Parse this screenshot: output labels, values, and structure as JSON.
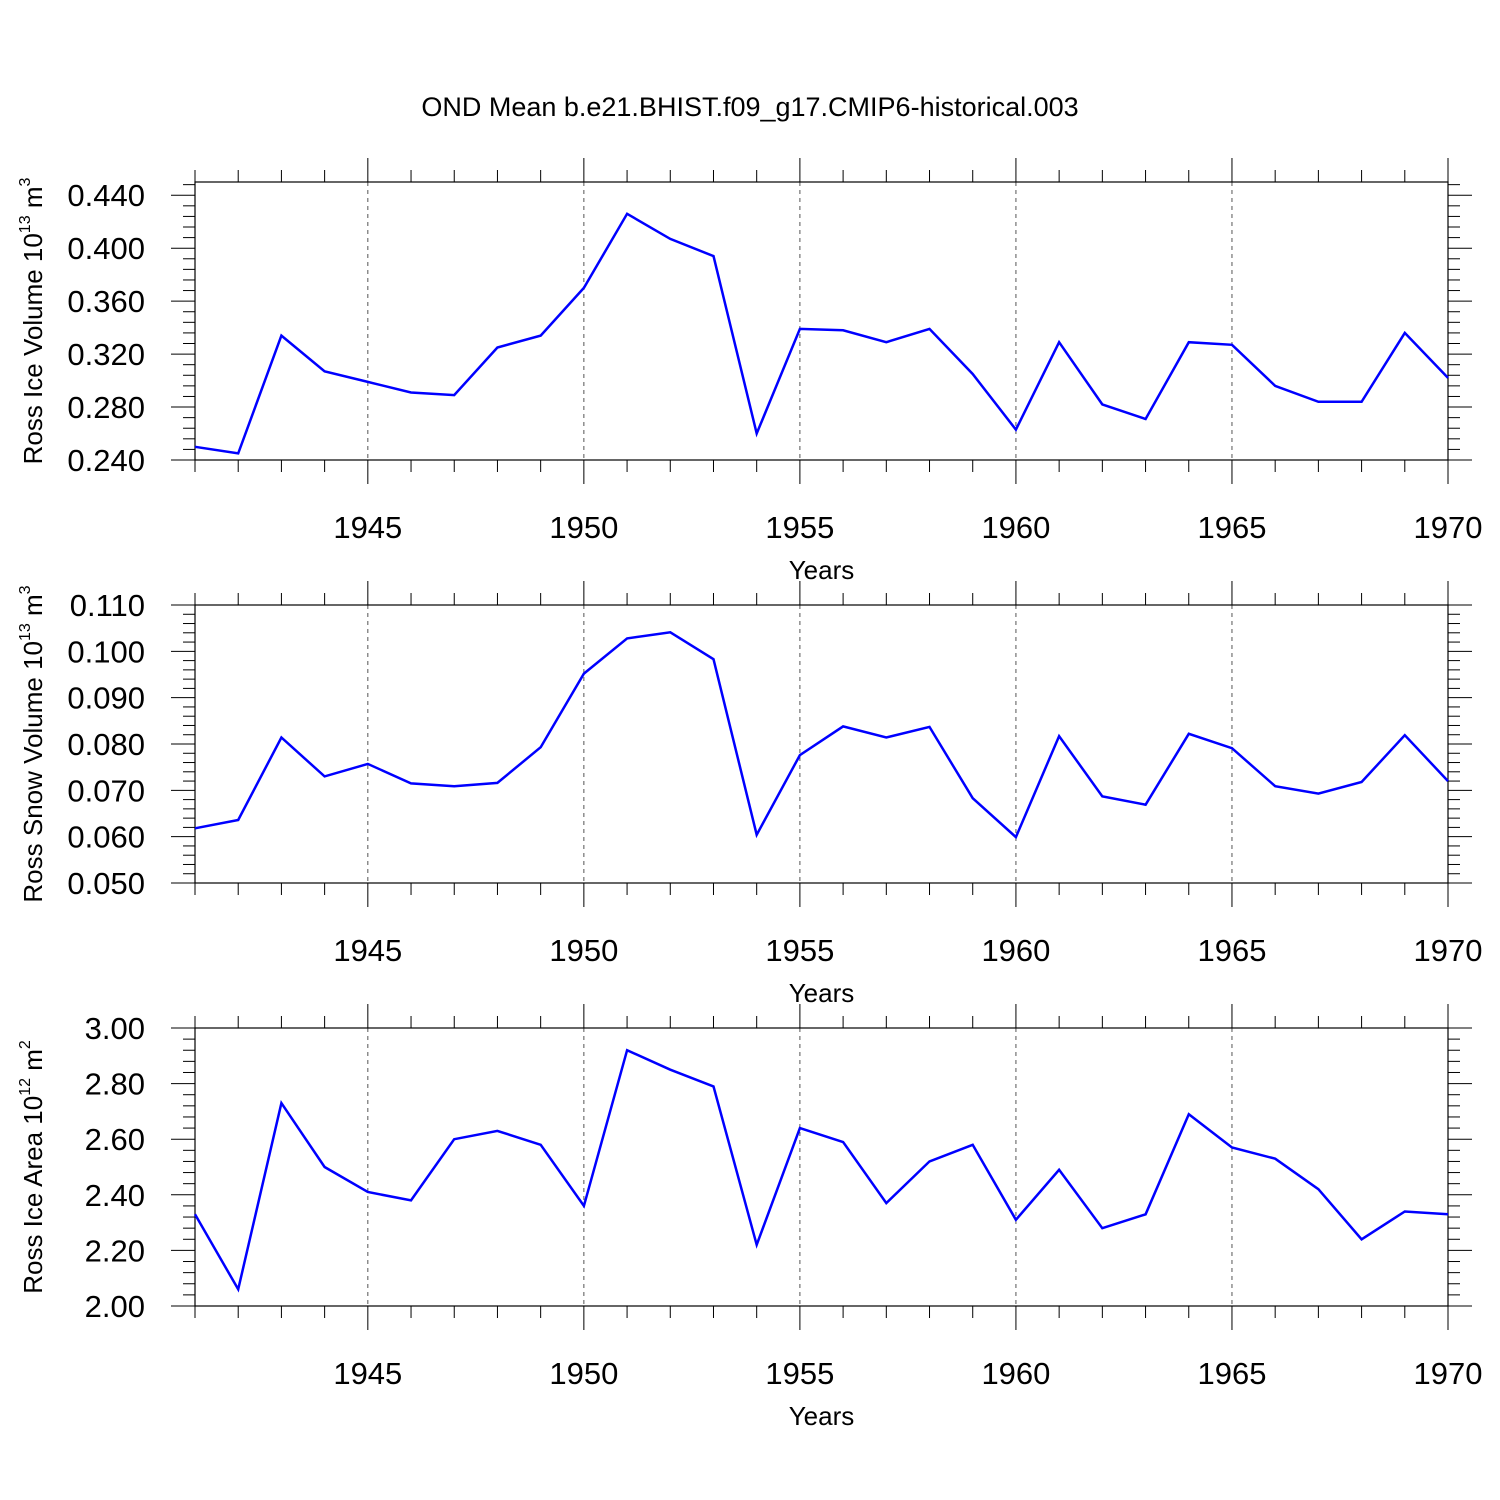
{
  "title": "OND Mean b.e21.BHIST.f09_g17.CMIP6-historical.003",
  "colors": {
    "line": "#0000ff",
    "axis": "#000000",
    "grid": "#555555"
  },
  "chart_data": [
    {
      "type": "line",
      "ylabel": {
        "text": "Ross Ice Volume 10",
        "exp": "13",
        "unit": " m",
        "unit_exp": "3"
      },
      "xlabel": "Years",
      "xlim": [
        1941,
        1970
      ],
      "ylim": [
        0.24,
        0.45
      ],
      "yticks": [
        0.24,
        0.28,
        0.32,
        0.36,
        0.4,
        0.44
      ],
      "ytick_labels": [
        "0.240",
        "0.280",
        "0.320",
        "0.360",
        "0.400",
        "0.440"
      ],
      "xticks": [
        1945,
        1950,
        1955,
        1960,
        1965,
        1970
      ],
      "xtick_labels": [
        "1945",
        "1950",
        "1955",
        "1960",
        "1965",
        "1970"
      ],
      "grid": "vertical dashed at major x ticks",
      "x": [
        1941,
        1942,
        1943,
        1944,
        1945,
        1946,
        1947,
        1948,
        1949,
        1950,
        1951,
        1952,
        1953,
        1954,
        1955,
        1956,
        1957,
        1958,
        1959,
        1960,
        1961,
        1962,
        1963,
        1964,
        1965,
        1966,
        1967,
        1968,
        1969,
        1970
      ],
      "values": [
        0.25,
        0.245,
        0.334,
        0.307,
        0.299,
        0.291,
        0.289,
        0.325,
        0.334,
        0.37,
        0.426,
        0.407,
        0.394,
        0.26,
        0.339,
        0.338,
        0.329,
        0.339,
        0.305,
        0.263,
        0.329,
        0.282,
        0.271,
        0.329,
        0.327,
        0.296,
        0.284,
        0.284,
        0.336,
        0.302
      ]
    },
    {
      "type": "line",
      "ylabel": {
        "text": "Ross Snow Volume 10",
        "exp": "13",
        "unit": " m",
        "unit_exp": "3"
      },
      "xlabel": "Years",
      "xlim": [
        1941,
        1970
      ],
      "ylim": [
        0.05,
        0.11
      ],
      "yticks": [
        0.05,
        0.06,
        0.07,
        0.08,
        0.09,
        0.1,
        0.11
      ],
      "ytick_labels": [
        "0.050",
        "0.060",
        "0.070",
        "0.080",
        "0.090",
        "0.100",
        "0.110"
      ],
      "xticks": [
        1945,
        1950,
        1955,
        1960,
        1965,
        1970
      ],
      "xtick_labels": [
        "1945",
        "1950",
        "1955",
        "1960",
        "1965",
        "1970"
      ],
      "grid": "vertical dashed at major x ticks",
      "x": [
        1941,
        1942,
        1943,
        1944,
        1945,
        1946,
        1947,
        1948,
        1949,
        1950,
        1951,
        1952,
        1953,
        1954,
        1955,
        1956,
        1957,
        1958,
        1959,
        1960,
        1961,
        1962,
        1963,
        1964,
        1965,
        1966,
        1967,
        1968,
        1969,
        1970
      ],
      "values": [
        0.0618,
        0.0636,
        0.0814,
        0.073,
        0.0757,
        0.0715,
        0.0709,
        0.0716,
        0.0793,
        0.0952,
        0.1028,
        0.1041,
        0.0983,
        0.0604,
        0.0776,
        0.0838,
        0.0814,
        0.0837,
        0.0683,
        0.0599,
        0.0817,
        0.0687,
        0.0669,
        0.0822,
        0.0791,
        0.0709,
        0.0693,
        0.0718,
        0.0819,
        0.072
      ]
    },
    {
      "type": "line",
      "ylabel": {
        "text": "Ross Ice Area 10",
        "exp": "12",
        "unit": " m",
        "unit_exp": "2"
      },
      "xlabel": "Years",
      "xlim": [
        1941,
        1970
      ],
      "ylim": [
        2.0,
        3.0
      ],
      "yticks": [
        2.0,
        2.2,
        2.4,
        2.6,
        2.8,
        3.0
      ],
      "ytick_labels": [
        "2.00",
        "2.20",
        "2.40",
        "2.60",
        "2.80",
        "3.00"
      ],
      "xticks": [
        1945,
        1950,
        1955,
        1960,
        1965,
        1970
      ],
      "xtick_labels": [
        "1945",
        "1950",
        "1955",
        "1960",
        "1965",
        "1970"
      ],
      "grid": "vertical dashed at major x ticks",
      "x": [
        1941,
        1942,
        1943,
        1944,
        1945,
        1946,
        1947,
        1948,
        1949,
        1950,
        1951,
        1952,
        1953,
        1954,
        1955,
        1956,
        1957,
        1958,
        1959,
        1960,
        1961,
        1962,
        1963,
        1964,
        1965,
        1966,
        1967,
        1968,
        1969,
        1970
      ],
      "values": [
        2.33,
        2.06,
        2.73,
        2.5,
        2.41,
        2.38,
        2.6,
        2.63,
        2.58,
        2.36,
        2.92,
        2.85,
        2.79,
        2.22,
        2.64,
        2.59,
        2.37,
        2.52,
        2.58,
        2.31,
        2.49,
        2.28,
        2.33,
        2.69,
        2.57,
        2.53,
        2.42,
        2.24,
        2.34,
        2.33
      ]
    }
  ]
}
